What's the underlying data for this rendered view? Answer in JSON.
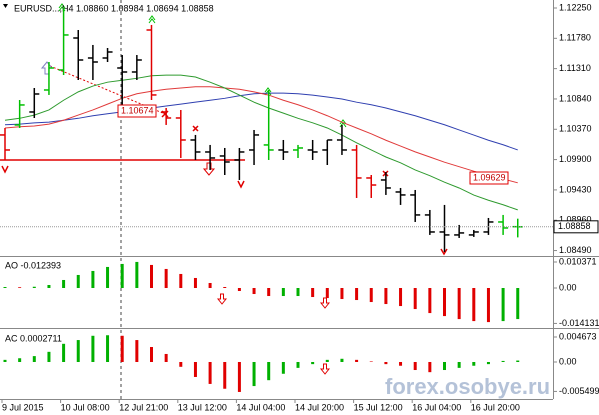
{
  "chart_data": [
    {
      "type": "ohlc",
      "title": "EURUSD...,H4  1.08860 1.08984 1.08694 1.08858",
      "categories": [
        "9 Jul 2015",
        null,
        null,
        null,
        "10 Jul 08:00",
        null,
        null,
        null,
        "12 Jul 21:00",
        null,
        null,
        null,
        "13 Jul 12:00",
        null,
        null,
        null,
        "14 Jul 04:00",
        null,
        null,
        null,
        "14 Jul 20:00",
        null,
        null,
        null,
        "15 Jul 12:00",
        null,
        null,
        null,
        "16 Jul 04:00",
        null,
        null,
        null,
        "16 Jul 20:00",
        null,
        null,
        null
      ],
      "open": [
        1.10282,
        1.10437,
        1.10638,
        1.10979,
        1.11289,
        1.11785,
        1.11475,
        1.11475,
        1.1132,
        1.11258,
        1.11909,
        1.10638,
        1.10545,
        1.10204,
        1.10018,
        1.09956,
        1.09894,
        1.10049,
        1.10127,
        1.10049,
        1.10049,
        1.10049,
        1.10049,
        1.10204,
        1.10049,
        1.09615,
        1.09584,
        1.09398,
        1.09352,
        1.09042,
        1.08778,
        1.08732,
        1.08732,
        1.08778,
        1.08933,
        1.0886
      ],
      "high": [
        1.1039,
        1.10824,
        1.1101,
        1.11413,
        1.1225,
        1.11909,
        1.11677,
        1.1163,
        1.11521,
        1.11521,
        1.11987,
        1.107,
        1.10669,
        1.10282,
        1.10127,
        1.1008,
        1.1008,
        1.10359,
        1.10979,
        1.10204,
        1.10127,
        1.10204,
        1.10204,
        1.10437,
        1.10127,
        1.09661,
        1.09708,
        1.0946,
        1.09429,
        1.09119,
        1.09197,
        1.08887,
        1.08809,
        1.08995,
        1.09042,
        1.08984
      ],
      "low": [
        1.09894,
        1.1039,
        1.10545,
        1.10902,
        1.11211,
        1.11134,
        1.11134,
        1.11413,
        1.10747,
        1.11134,
        1.10824,
        1.10437,
        1.09925,
        1.09894,
        1.09739,
        1.09661,
        1.09584,
        1.09816,
        1.09894,
        1.09894,
        1.09925,
        1.09894,
        1.09816,
        1.09972,
        1.09305,
        1.09305,
        1.09352,
        1.09197,
        1.08933,
        1.08732,
        1.08468,
        1.08685,
        1.08701,
        1.08732,
        1.08732,
        1.08694
      ],
      "close": [
        1.10049,
        1.10747,
        1.10917,
        1.1132,
        1.11832,
        1.11444,
        1.11413,
        1.11568,
        1.11258,
        1.11444,
        1.10902,
        1.10545,
        1.10204,
        1.10018,
        1.09925,
        1.09863,
        1.10018,
        1.10282,
        1.10049,
        1.10018,
        1.1008,
        1.10018,
        1.10204,
        1.10049,
        1.09615,
        1.09506,
        1.0946,
        1.09352,
        1.09042,
        1.08778,
        1.08732,
        1.08763,
        1.08778,
        1.08933,
        1.0884,
        1.08858
      ],
      "bar_colors": [
        "#e00000",
        "#00c000",
        "#000000",
        "#00c000",
        "#00c000",
        "#000000",
        "#000000",
        "#000000",
        "#000000",
        "#000000",
        "#e00000",
        "#e00000",
        "#e00000",
        "#000000",
        "#000000",
        "#000000",
        "#000000",
        "#000000",
        "#00c000",
        "#000000",
        "#00c000",
        "#000000",
        "#000000",
        "#000000",
        "#e00000",
        "#e00000",
        "#000000",
        "#000000",
        "#000000",
        "#000000",
        "#000000",
        "#000000",
        "#000000",
        "#000000",
        "#00c000",
        "#00c000"
      ],
      "series": [
        {
          "color": "#2f3fb0",
          "values": [
            1.1044,
            1.1045,
            1.1047,
            1.1048,
            1.1051,
            1.1054,
            1.1058,
            1.1061,
            1.1064,
            1.1067,
            1.107,
            1.1073,
            1.1076,
            1.1079,
            1.1082,
            1.1085,
            1.1089,
            1.1092,
            1.1093,
            1.1093,
            1.1092,
            1.109,
            1.1087,
            1.1084,
            1.1079,
            1.1075,
            1.107,
            1.1064,
            1.1058,
            1.1051,
            1.1044,
            1.1036,
            1.1028,
            1.102,
            1.1013,
            1.1005
          ]
        },
        {
          "color": "#e03a3a",
          "values": [
            1.1039,
            1.1041,
            1.1042,
            1.1045,
            1.1051,
            1.1059,
            1.1067,
            1.1076,
            1.1085,
            1.1092,
            1.1096,
            1.1099,
            1.1101,
            1.1103,
            1.1103,
            1.1101,
            1.1099,
            1.1095,
            1.109,
            1.1082,
            1.1075,
            1.1067,
            1.1058,
            1.1048,
            1.1039,
            1.103,
            1.102,
            1.1011,
            1.1002,
            1.0994,
            1.0986,
            1.0979,
            1.0972,
            1.0966,
            1.096,
            1.0954
          ]
        },
        {
          "color": "#2e9a2e",
          "values": [
            1.1051,
            1.1054,
            1.1059,
            1.1067,
            1.1082,
            1.1095,
            1.1104,
            1.111,
            1.1113,
            1.1116,
            1.112,
            1.1121,
            1.1121,
            1.1118,
            1.111,
            1.1101,
            1.109,
            1.1079,
            1.107,
            1.1062,
            1.1054,
            1.1047,
            1.1039,
            1.1028,
            1.1016,
            1.1005,
            1.0994,
            1.0985,
            1.0974,
            1.0965,
            1.0955,
            1.0946,
            1.0935,
            1.0927,
            1.092,
            1.0912
          ]
        }
      ],
      "ylim": [
        1.08421,
        1.12374
      ],
      "yticks": [
        {
          "value": 1.1225,
          "label": "1.12250"
        },
        {
          "value": 1.1178,
          "label": "1.11780"
        },
        {
          "value": 1.1131,
          "label": "1.11310"
        },
        {
          "value": 1.1084,
          "label": "1.10840"
        },
        {
          "value": 1.1037,
          "label": "1.10370"
        },
        {
          "value": 1.099,
          "label": "1.09900"
        },
        {
          "value": 1.0943,
          "label": "1.09430"
        },
        {
          "value": 1.0896,
          "label": "1.08960"
        },
        {
          "value": 1.0849,
          "label": "1.08490"
        }
      ],
      "price_label": "1.08858",
      "annotations": [
        "1.10674",
        "1.09629"
      ]
    },
    {
      "type": "histogram",
      "title": "AO -0.012393",
      "values": [
        0.0004,
        0.0003,
        0.0005,
        0.0012,
        0.0032,
        0.0052,
        0.0068,
        0.0084,
        0.0096,
        0.0104,
        0.0092,
        0.0076,
        0.0056,
        0.004,
        0.002,
        0.0004,
        -0.0012,
        -0.0024,
        -0.0032,
        -0.0032,
        -0.0032,
        -0.0036,
        -0.004,
        -0.0044,
        -0.0048,
        -0.0056,
        -0.0064,
        -0.0072,
        -0.0084,
        -0.01,
        -0.0112,
        -0.0124,
        -0.0132,
        -0.0136,
        -0.0132,
        -0.012393
      ],
      "up_color": "#00b000",
      "down_color": "#e00000",
      "ylim": [
        -0.01556,
        0.01197
      ],
      "yticks": [
        0.010371,
        {
          "value": 0,
          "label": "0.00"
        },
        -0.014131
      ]
    },
    {
      "type": "histogram",
      "title": "AC 0.0002711",
      "values": [
        0.0004,
        0.0007,
        0.0011,
        0.0019,
        0.0034,
        0.0041,
        0.0049,
        0.005,
        0.0049,
        0.0041,
        0.0028,
        0.0015,
        -0.0009,
        -0.0028,
        -0.0041,
        -0.005,
        -0.0056,
        -0.0045,
        -0.0034,
        -0.0022,
        -0.0011,
        -0.0004,
        0.0004,
        0.0006,
        0.0004,
        0.0001,
        -0.0004,
        -0.0007,
        -0.0015,
        -0.0019,
        -0.0015,
        -0.0011,
        -0.0007,
        -0.0004,
        0.0002,
        0.0002711
      ],
      "up_color": "#00b000",
      "down_color": "#e00000",
      "ylim": [
        -0.00673,
        0.00598
      ],
      "yticks": [
        0.004673,
        {
          "value": 0,
          "label": "0.00"
        },
        -0.005499
      ]
    }
  ],
  "watermark": "forex.osobye.ru"
}
